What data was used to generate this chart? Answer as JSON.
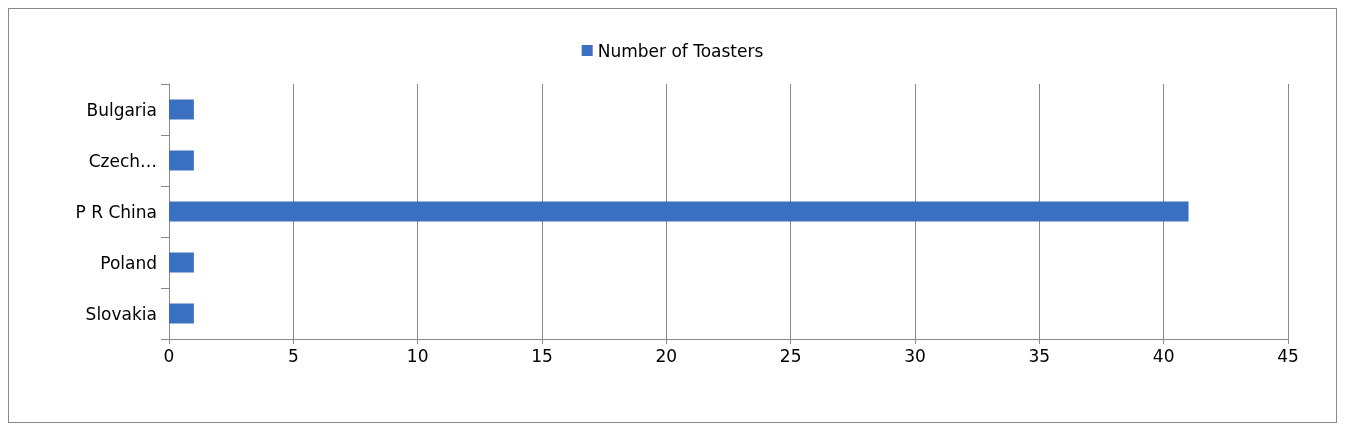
{
  "chart_data": {
    "type": "bar",
    "orientation": "horizontal",
    "categories": [
      "Bulgaria",
      "Czech…",
      "P R China",
      "Poland",
      "Slovakia"
    ],
    "series": [
      {
        "name": "Number of Toasters",
        "color": "#3b6fbf",
        "values": [
          1,
          1,
          41,
          1,
          1
        ]
      }
    ],
    "xlim": [
      0,
      45
    ],
    "xticks": [
      0,
      5,
      10,
      15,
      20,
      25,
      30,
      35,
      40,
      45
    ],
    "grid": "x",
    "legend": "top"
  }
}
